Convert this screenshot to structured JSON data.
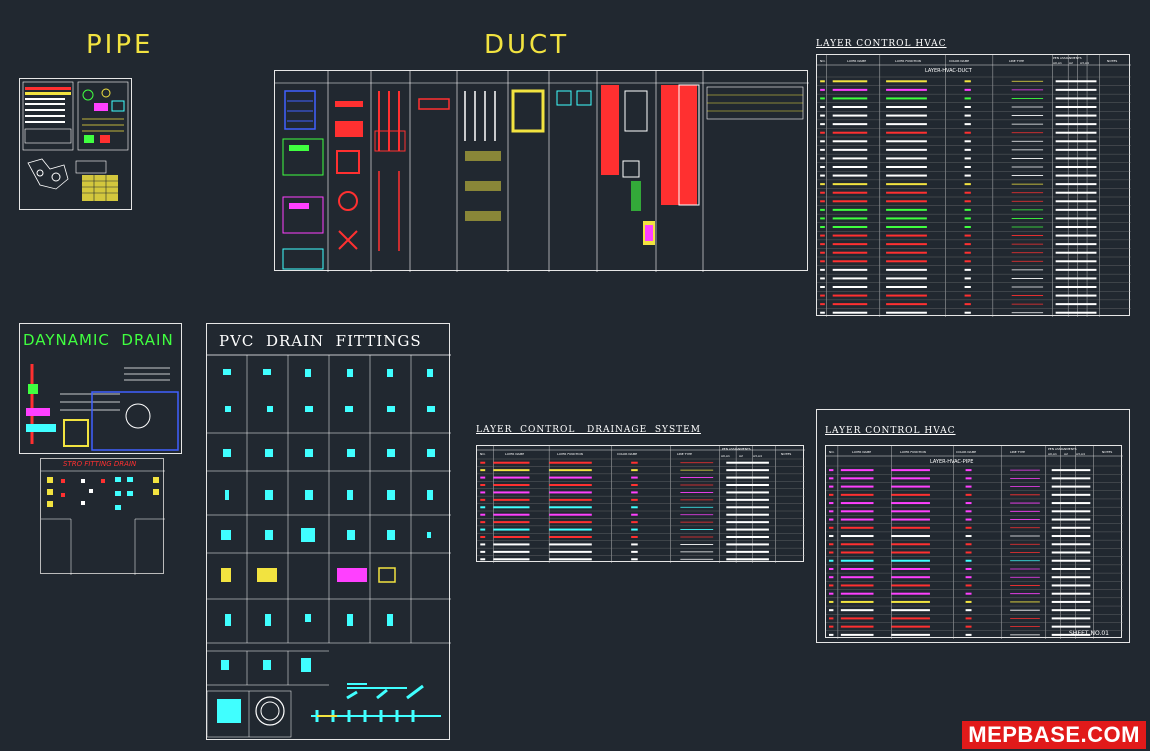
{
  "headings": {
    "pipe": "PIPE",
    "duct": "DUCT",
    "dynamic_drain": "DAYNAMIC  DRAIN",
    "pvc_drain_fittings": "PVC  DRAIN  FITTINGS",
    "stro_fitting_drain": "STRO FITTING DRAIN",
    "layer_control_hvac_top": "LAYER  CONTROL  HVAC",
    "layer_control_drainage": "LAYER  CONTROL   DRAINAGE  SYSTEM",
    "layer_control_hvac_bottom": "LAYER  CONTROL  HVAC"
  },
  "hvac_top_table": {
    "headers": [
      "NO.",
      "LAYER NAME",
      "LAYER FUNCTION",
      "COLOR NAME",
      "LINE TYPE",
      "PEN ASSIGNMENTS",
      "NOTES"
    ],
    "pen_sub": [
      "A0,A1",
      "A2",
      "A3,A4"
    ],
    "subtitle": "LAYER-HVAC-DUCT",
    "row_colors": [
      "#f2e340",
      "#ff40ff",
      "#40ff40",
      "#ffffff",
      "#ffffff",
      "#ffffff",
      "#ff3030",
      "#ffffff",
      "#ffffff",
      "#ffffff",
      "#ffffff",
      "#ffffff",
      "#f2e340",
      "#ff3030",
      "#ff3030",
      "#40ff40",
      "#40ff40",
      "#40ff40",
      "#ff3030",
      "#ff3030",
      "#ff3030",
      "#ff3030",
      "#ffffff",
      "#ffffff",
      "#ffffff",
      "#ff3030",
      "#ff3030",
      "#ffffff"
    ]
  },
  "drainage_table": {
    "headers": [
      "NO.",
      "LAYER NAME",
      "LAYER FUNCTION",
      "COLOR NAME",
      "LINE TYPE",
      "PEN ASSIGNMENTS",
      "NOTES"
    ],
    "pen_sub": [
      "A0,A1",
      "A2",
      "A3,A4"
    ],
    "row_colors": [
      "#ff3030",
      "#f2e340",
      "#ff40ff",
      "#ff3030",
      "#ff40ff",
      "#ff3030",
      "#40ffff",
      "#ff40ff",
      "#ff3030",
      "#40ffff",
      "#ff3030",
      "#ffffff",
      "#ffffff",
      "#ffffff"
    ]
  },
  "hvac_bottom_table": {
    "headers": [
      "NO.",
      "LAYER NAME",
      "LAYER FUNCTION",
      "COLOR NAME",
      "LINE TYPE",
      "PEN ASSIGNMENTS",
      "NOTES"
    ],
    "pen_sub": [
      "A0,A1",
      "A2",
      "A3,A4"
    ],
    "subtitle": "LAYER-HVAC-PIPE",
    "sheet_label": "SHEET NO.01",
    "row_colors": [
      "#ff40ff",
      "#ff40ff",
      "#ff40ff",
      "#ff3030",
      "#ff40ff",
      "#ff40ff",
      "#ff40ff",
      "#ff3030",
      "#ffffff",
      "#ff3030",
      "#ff3030",
      "#40ffff",
      "#ff40ff",
      "#ff40ff",
      "#ff3030",
      "#ff40ff",
      "#f2e340",
      "#ffffff",
      "#ff3030",
      "#ff3030",
      "#ffffff"
    ]
  },
  "watermark": "MEPBASE.COM"
}
